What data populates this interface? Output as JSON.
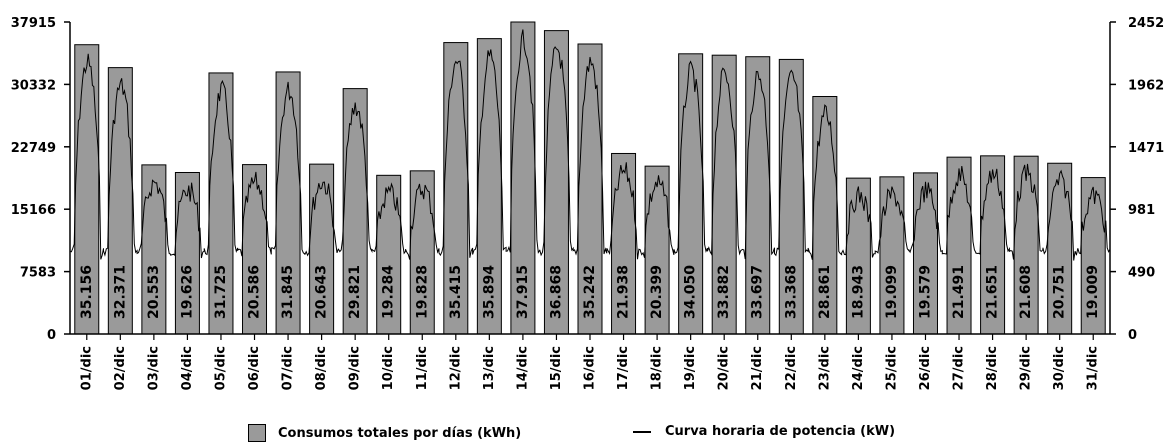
{
  "chart_data": {
    "type": "bar",
    "categories": [
      "01/dic",
      "02/dic",
      "03/dic",
      "04/dic",
      "05/dic",
      "06/dic",
      "07/dic",
      "08/dic",
      "09/dic",
      "10/dic",
      "11/dic",
      "12/dic",
      "13/dic",
      "14/dic",
      "15/dic",
      "16/dic",
      "17/dic",
      "18/dic",
      "19/dic",
      "20/dic",
      "21/dic",
      "22/dic",
      "23/dic",
      "24/dic",
      "25/dic",
      "26/dic",
      "27/dic",
      "28/dic",
      "29/dic",
      "30/dic",
      "31/dic"
    ],
    "series": [
      {
        "name": "Consumos totales por días (kWh)",
        "type": "bar",
        "axis": "left",
        "values": [
          35156,
          32371,
          20553,
          19626,
          31725,
          20586,
          31845,
          20643,
          29821,
          19284,
          19828,
          35415,
          35894,
          37915,
          36868,
          35242,
          21938,
          20399,
          34050,
          33882,
          33697,
          33368,
          28861,
          18943,
          19099,
          19579,
          21491,
          21651,
          21608,
          20751,
          19009
        ],
        "labels": [
          "35.156",
          "32.371",
          "20.553",
          "19.626",
          "31.725",
          "20.586",
          "31.845",
          "20.643",
          "29.821",
          "19.284",
          "19.828",
          "35.415",
          "35.894",
          "37.915",
          "36.868",
          "35.242",
          "21.938",
          "20.399",
          "34.050",
          "33.882",
          "33.697",
          "33.368",
          "28.861",
          "18.943",
          "19.099",
          "19.579",
          "21.491",
          "21.651",
          "21.608",
          "20.751",
          "19.009"
        ],
        "color": "#9a9a9a"
      },
      {
        "name": "Curva horaria de potencia (kW)",
        "type": "line",
        "axis": "right",
        "color": "#000000"
      }
    ],
    "y_left": {
      "ticks": [
        "0",
        "7583",
        "15166",
        "22749",
        "30332",
        "37915"
      ],
      "ylim": [
        0,
        37915
      ]
    },
    "y_right": {
      "ticks": [
        "0",
        "490",
        "981",
        "1471",
        "1962",
        "2452"
      ],
      "ylim": [
        0,
        2452
      ]
    },
    "legend_position": "bottom",
    "grid": false
  },
  "legend": {
    "bars_label": "Consumos totales por días (kWh)",
    "line_label": "Curva horaria de potencia (kW)"
  }
}
